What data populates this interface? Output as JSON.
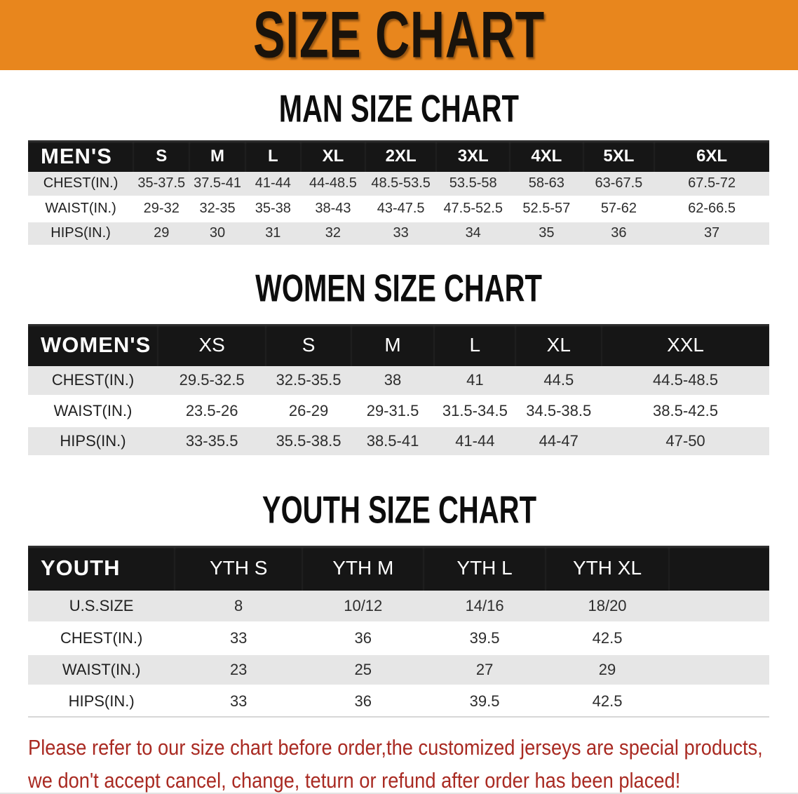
{
  "banner": {
    "title": "SIZE CHART",
    "bg_color": "#e8861d",
    "text_color": "#1a130b"
  },
  "sections": [
    {
      "id": "mens",
      "heading": "MAN SIZE CHART",
      "table": {
        "corner_label": "MEN'S",
        "columns": [
          "S",
          "M",
          "L",
          "XL",
          "2XL",
          "3XL",
          "4XL",
          "5XL",
          "6XL"
        ],
        "rows": [
          {
            "label": "CHEST(IN.)",
            "values": [
              "35-37.5",
              "37.5-41",
              "41-44",
              "44-48.5",
              "48.5-53.5",
              "53.5-58",
              "58-63",
              "63-67.5",
              "67.5-72"
            ]
          },
          {
            "label": "WAIST(IN.)",
            "values": [
              "29-32",
              "32-35",
              "35-38",
              "38-43",
              "43-47.5",
              "47.5-52.5",
              "52.5-57",
              "57-62",
              "62-66.5"
            ]
          },
          {
            "label": "HIPS(IN.)",
            "values": [
              "29",
              "30",
              "31",
              "32",
              "33",
              "34",
              "35",
              "36",
              "37"
            ]
          }
        ]
      }
    },
    {
      "id": "womens",
      "heading": "WOMEN SIZE CHART",
      "table": {
        "corner_label": "WOMEN'S",
        "columns": [
          "XS",
          "S",
          "M",
          "L",
          "XL",
          "XXL"
        ],
        "rows": [
          {
            "label": "CHEST(IN.)",
            "values": [
              "29.5-32.5",
              "32.5-35.5",
              "38",
              "41",
              "44.5",
              "44.5-48.5"
            ]
          },
          {
            "label": "WAIST(IN.)",
            "values": [
              "23.5-26",
              "26-29",
              "29-31.5",
              "31.5-34.5",
              "34.5-38.5",
              "38.5-42.5"
            ]
          },
          {
            "label": "HIPS(IN.)",
            "values": [
              "33-35.5",
              "35.5-38.5",
              "38.5-41",
              "41-44",
              "44-47",
              "47-50"
            ]
          }
        ]
      }
    },
    {
      "id": "youth",
      "heading": "YOUTH SIZE CHART",
      "table": {
        "corner_label": "YOUTH",
        "columns": [
          "YTH S",
          "YTH M",
          "YTH L",
          "YTH XL"
        ],
        "rows": [
          {
            "label": "U.S.SIZE",
            "values": [
              "8",
              "10/12",
              "14/16",
              "18/20"
            ]
          },
          {
            "label": "CHEST(IN.)",
            "values": [
              "33",
              "36",
              "39.5",
              "42.5"
            ]
          },
          {
            "label": "WAIST(IN.)",
            "values": [
              "23",
              "25",
              "27",
              "29"
            ]
          },
          {
            "label": "HIPS(IN.)",
            "values": [
              "33",
              "36",
              "39.5",
              "42.5"
            ]
          }
        ]
      }
    }
  ],
  "footer": {
    "line1": "Please refer to our size chart before order,the customized jerseys are special products,",
    "line2": "we don't accept cancel, change, teturn or refund after order has been placed!",
    "text_color": "#a92a22"
  }
}
